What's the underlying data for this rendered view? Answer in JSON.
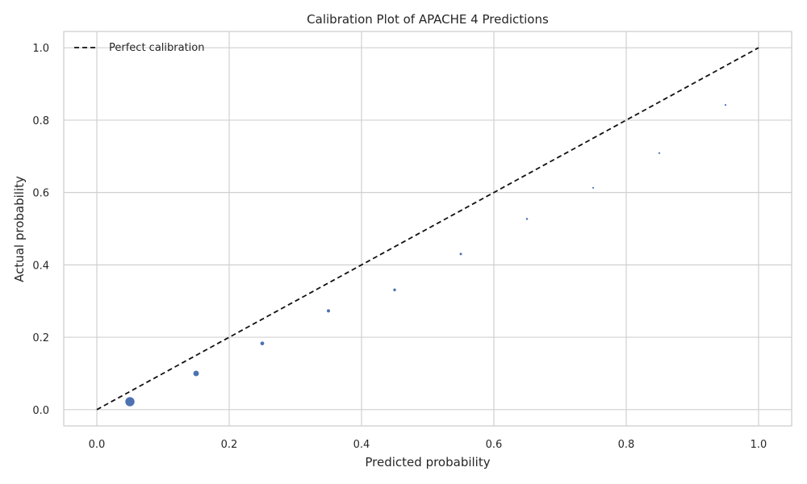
{
  "chart_data": {
    "type": "scatter",
    "title": "Calibration Plot of APACHE 4 Predictions",
    "xlabel": "Predicted probability",
    "ylabel": "Actual probability",
    "xlim": [
      -0.05,
      1.05
    ],
    "ylim": [
      -0.045,
      1.045
    ],
    "xticks": [
      0.0,
      0.2,
      0.4,
      0.6,
      0.8,
      1.0
    ],
    "xtick_labels": [
      "0.0",
      "0.2",
      "0.4",
      "0.6",
      "0.8",
      "1.0"
    ],
    "yticks": [
      0.0,
      0.2,
      0.4,
      0.6,
      0.8,
      1.0
    ],
    "ytick_labels": [
      "0.0",
      "0.2",
      "0.4",
      "0.6",
      "0.8",
      "1.0"
    ],
    "grid": true,
    "legend": {
      "position": "top-left",
      "entries": [
        "Perfect calibration"
      ]
    },
    "reference_line": {
      "label": "Perfect calibration",
      "x": [
        0,
        1
      ],
      "y": [
        0,
        1
      ],
      "style": "dashed",
      "color": "#111111"
    },
    "series": [
      {
        "color": "#4c72b0",
        "x": [
          0.05,
          0.15,
          0.25,
          0.35,
          0.45,
          0.55,
          0.65,
          0.75,
          0.85,
          0.95
        ],
        "y": [
          0.022,
          0.1,
          0.183,
          0.273,
          0.331,
          0.43,
          0.527,
          0.613,
          0.709,
          0.842
        ],
        "size": [
          36,
          14,
          7,
          4,
          3,
          2.2,
          1.6,
          1.2,
          0.9,
          0.6
        ]
      }
    ]
  }
}
